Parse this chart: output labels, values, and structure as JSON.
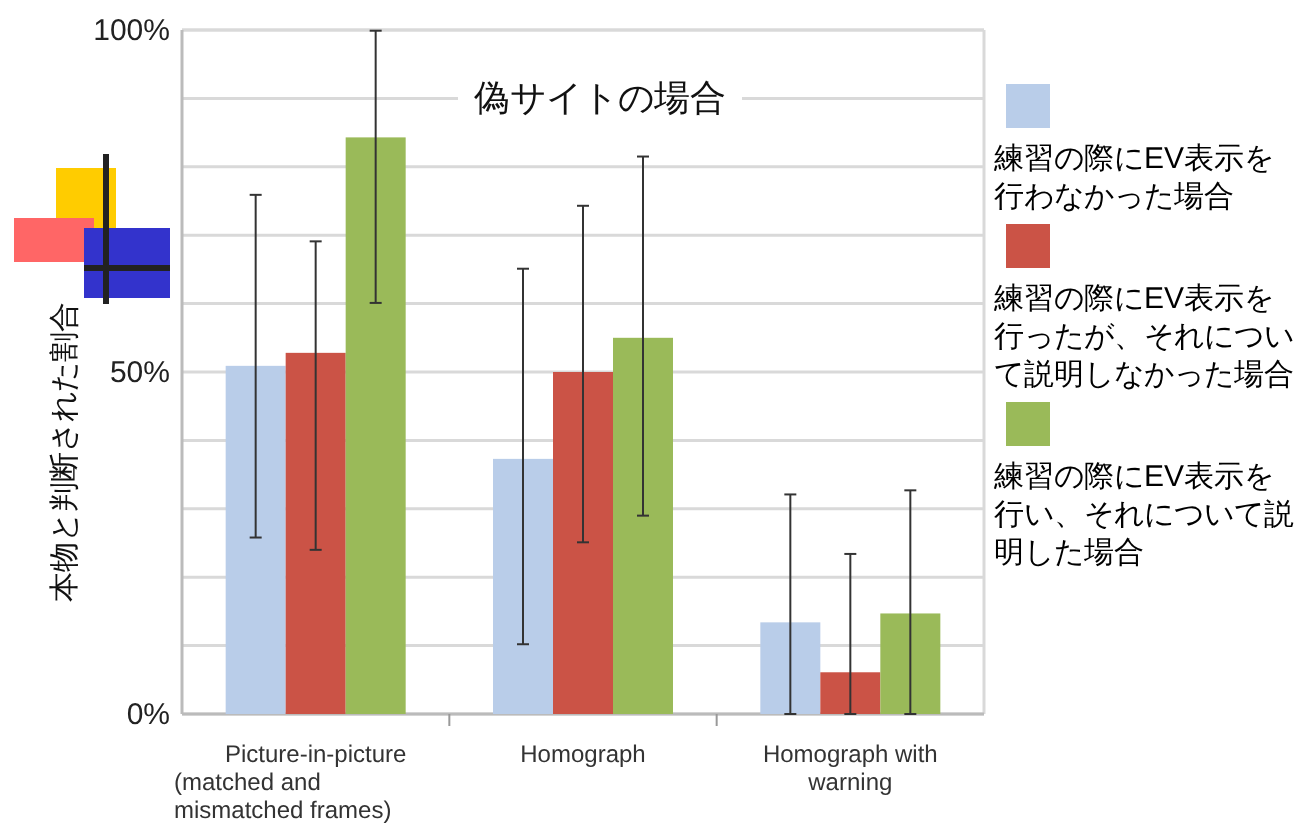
{
  "chart_data": {
    "type": "bar",
    "title": "偽サイトの場合",
    "ylabel": "本物と判断された割合",
    "categories": [
      "Picture-in-picture\n(matched and\nmismatched frames)",
      "Homograph",
      "Homograph with\nwarning"
    ],
    "series": [
      {
        "name": "練習の際にEV表示を行わなかった場合",
        "color": "#b9cde9",
        "values": [
          50.9,
          37.3,
          13.4
        ],
        "errors": [
          [
            25.8,
            75.9
          ],
          [
            10.2,
            65.1
          ],
          [
            0,
            32.1
          ]
        ]
      },
      {
        "name": "練習の際にEV表示を行ったが、それについて説明しなかった場合",
        "color": "#cb5346",
        "values": [
          52.8,
          50.0,
          6.1
        ],
        "errors": [
          [
            24.0,
            69.1
          ],
          [
            25.1,
            74.3
          ],
          [
            0,
            23.4
          ]
        ]
      },
      {
        "name": "練習の際にEV表示を行い、それについて説明した場合",
        "color": "#9aba59",
        "values": [
          84.3,
          55.0,
          14.7
        ],
        "errors": [
          [
            60.1,
            99.9
          ],
          [
            29.0,
            81.5
          ],
          [
            0,
            32.7
          ]
        ]
      }
    ],
    "ylim": [
      0,
      100
    ],
    "yticks": [
      {
        "value": 0,
        "label": "0%"
      },
      {
        "value": 10,
        "label": null
      },
      {
        "value": 20,
        "label": null
      },
      {
        "value": 30,
        "label": null
      },
      {
        "value": 40,
        "label": null
      },
      {
        "value": 50,
        "label": "50%"
      },
      {
        "value": 60,
        "label": null
      },
      {
        "value": 70,
        "label": null
      },
      {
        "value": 80,
        "label": null
      },
      {
        "value": 90,
        "label": null
      },
      {
        "value": 100,
        "label": "100%"
      }
    ],
    "grid": "y",
    "legend": "right"
  }
}
